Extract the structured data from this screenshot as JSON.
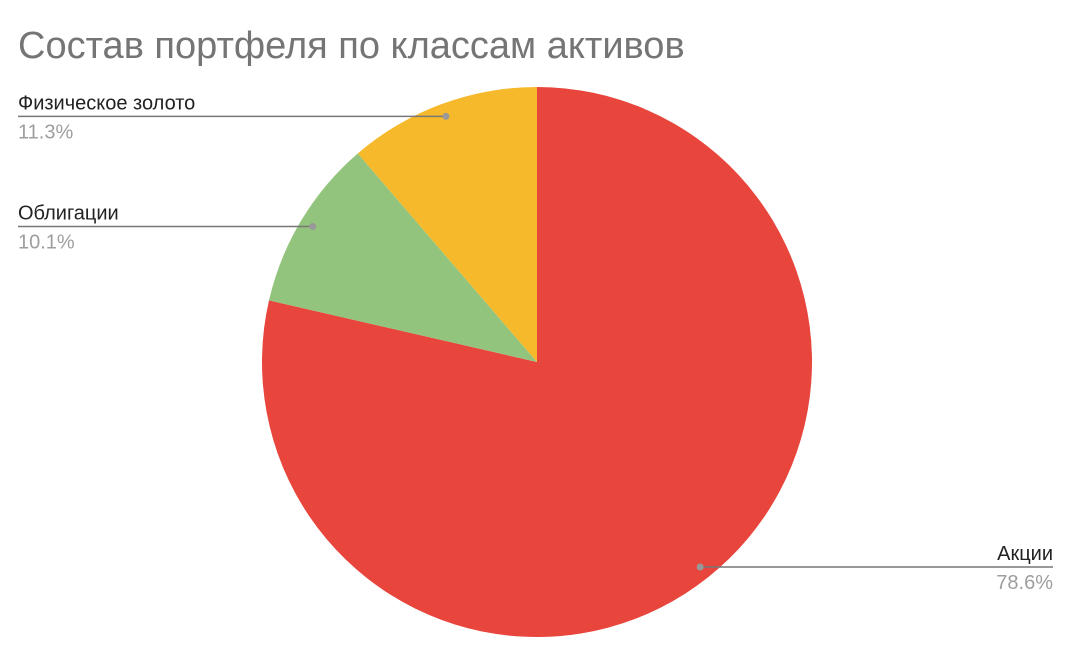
{
  "chart_data": {
    "type": "pie",
    "title": "Состав портфеля по классам активов",
    "categories": [
      "Акции",
      "Облигации",
      "Физическое золото"
    ],
    "values": [
      78.6,
      10.1,
      11.3
    ],
    "value_labels": [
      "78.6%",
      "10.1%",
      "11.3%"
    ],
    "colors": [
      "#e8453c",
      "#93c47d",
      "#f6b92b"
    ]
  }
}
